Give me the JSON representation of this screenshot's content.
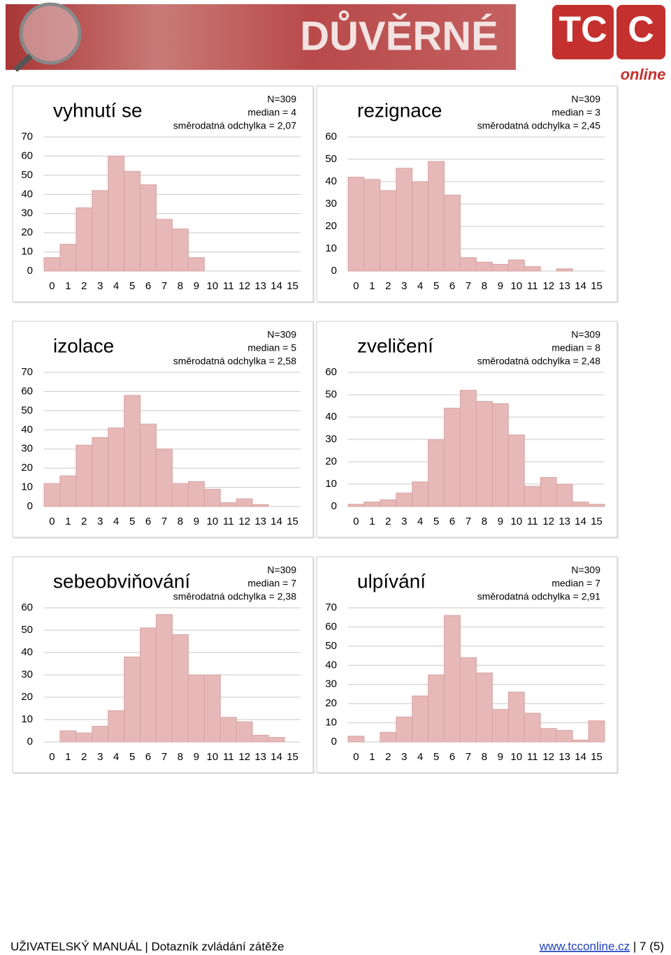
{
  "header": {
    "title": "DŮVĚRNÉ",
    "logo": [
      "TC",
      "C"
    ],
    "logo_sub": "online"
  },
  "chart_data": [
    {
      "type": "bar",
      "title": "vyhnutí se",
      "annotations": [
        "N=309",
        "median = 4",
        "směrodatná odchylka = 2,07"
      ],
      "categories": [
        0,
        1,
        2,
        3,
        4,
        5,
        6,
        7,
        8,
        9,
        10,
        11,
        12,
        13,
        14,
        15
      ],
      "values": [
        7,
        14,
        33,
        42,
        60,
        52,
        45,
        27,
        22,
        7,
        0,
        0,
        0,
        0,
        0,
        0
      ],
      "color": "#e6b9b8",
      "ylim": [
        0,
        70
      ],
      "yticks": [
        0,
        10,
        20,
        30,
        40,
        50,
        60,
        70
      ],
      "grid": true
    },
    {
      "type": "bar",
      "title": "rezignace",
      "annotations": [
        "N=309",
        "median = 3",
        "směrodatná odchylka = 2,45"
      ],
      "categories": [
        0,
        1,
        2,
        3,
        4,
        5,
        6,
        7,
        8,
        9,
        10,
        11,
        12,
        13,
        14,
        15
      ],
      "values": [
        42,
        41,
        36,
        46,
        40,
        49,
        34,
        6,
        4,
        3,
        5,
        2,
        0,
        1,
        0,
        0
      ],
      "color": "#e6b9b8",
      "ylim": [
        0,
        60
      ],
      "yticks": [
        0,
        10,
        20,
        30,
        40,
        50,
        60
      ],
      "grid": true
    },
    {
      "type": "bar",
      "title": "izolace",
      "annotations": [
        "N=309",
        "median = 5",
        "směrodatná odchylka = 2,58"
      ],
      "categories": [
        0,
        1,
        2,
        3,
        4,
        5,
        6,
        7,
        8,
        9,
        10,
        11,
        12,
        13,
        14,
        15
      ],
      "values": [
        12,
        16,
        32,
        36,
        41,
        58,
        43,
        30,
        12,
        13,
        9,
        2,
        4,
        1,
        0,
        0
      ],
      "color": "#e6b9b8",
      "ylim": [
        0,
        70
      ],
      "yticks": [
        0,
        10,
        20,
        30,
        40,
        50,
        60,
        70
      ],
      "grid": true
    },
    {
      "type": "bar",
      "title": "zveličení",
      "annotations": [
        "N=309",
        "median = 8",
        "směrodatná odchylka = 2,48"
      ],
      "categories": [
        0,
        1,
        2,
        3,
        4,
        5,
        6,
        7,
        8,
        9,
        10,
        11,
        12,
        13,
        14,
        15
      ],
      "values": [
        1,
        2,
        3,
        6,
        11,
        30,
        44,
        52,
        47,
        46,
        32,
        9,
        13,
        10,
        2,
        1
      ],
      "color": "#e6b9b8",
      "ylim": [
        0,
        60
      ],
      "yticks": [
        0,
        10,
        20,
        30,
        40,
        50,
        60
      ],
      "grid": true
    },
    {
      "type": "bar",
      "title": "sebeobviňování",
      "annotations": [
        "N=309",
        "median = 7",
        "směrodatná odchylka = 2,38"
      ],
      "categories": [
        0,
        1,
        2,
        3,
        4,
        5,
        6,
        7,
        8,
        9,
        10,
        11,
        12,
        13,
        14,
        15
      ],
      "values": [
        0,
        5,
        4,
        7,
        14,
        38,
        51,
        57,
        48,
        30,
        30,
        11,
        9,
        3,
        2,
        0
      ],
      "color": "#e6b9b8",
      "ylim": [
        0,
        60
      ],
      "yticks": [
        0,
        10,
        20,
        30,
        40,
        50,
        60
      ],
      "grid": true
    },
    {
      "type": "bar",
      "title": "ulpívání",
      "annotations": [
        "N=309",
        "median = 7",
        "směrodatná odchylka = 2,91"
      ],
      "categories": [
        0,
        1,
        2,
        3,
        4,
        5,
        6,
        7,
        8,
        9,
        10,
        11,
        12,
        13,
        14,
        15
      ],
      "values": [
        3,
        0,
        5,
        13,
        24,
        35,
        66,
        44,
        36,
        17,
        26,
        15,
        7,
        6,
        1,
        11
      ],
      "color": "#e6b9b8",
      "ylim": [
        0,
        70
      ],
      "yticks": [
        0,
        10,
        20,
        30,
        40,
        50,
        60,
        70
      ],
      "grid": true
    }
  ],
  "footer": {
    "left": "UŽIVATELSKÝ MANUÁL | Dotazník zvládání zátěže",
    "link": "www.tcconline.cz",
    "page": " | 7 (5)"
  }
}
